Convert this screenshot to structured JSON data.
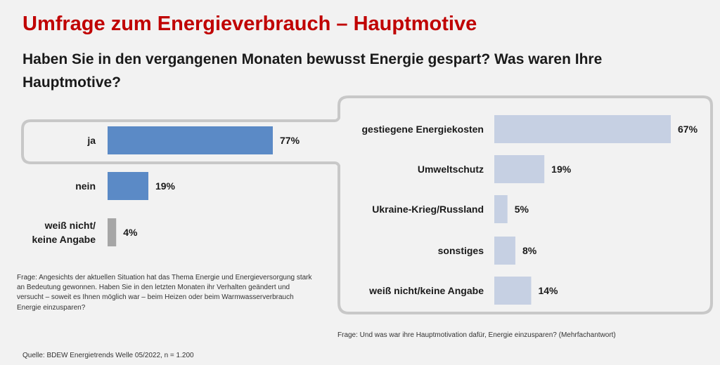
{
  "header": {
    "title": "Umfrage zum Energieverbrauch – Hauptmotive",
    "subtitle": "Haben Sie in den vergangenen Monaten bewusst Energie gespart? Was waren Ihre Hauptmotive?"
  },
  "notes": {
    "question_left": "Frage: Angesichts der aktuellen Situation hat das Thema Energie und Energieversorgung stark an Bedeutung gewonnen. Haben Sie in den letzten Monaten ihr Verhalten geändert und versucht – soweit es Ihnen möglich war – beim Heizen oder beim Warmwasserverbrauch Energie einzusparen?",
    "question_right": "Frage: Und was war ihre Hauptmotivation dafür, Energie einzusparen? (Mehrfachantwort)",
    "source": "Quelle: BDEW Energietrends Welle 05/2022, n = 1.200"
  },
  "colors": {
    "left_bar": "#5b8ac6",
    "left_bar_gray": "#a6a6a6",
    "right_bar": "#c6d0e3",
    "title": "#c00000"
  },
  "chart_data": [
    {
      "type": "bar",
      "orientation": "horizontal",
      "categories": [
        "ja",
        "nein",
        "weiß nicht/\nkeine Angabe"
      ],
      "values": [
        77,
        19,
        4
      ],
      "value_labels": [
        "77%",
        "19%",
        "4%"
      ],
      "unit": "%"
    },
    {
      "type": "bar",
      "orientation": "horizontal",
      "categories": [
        "gestiegene Energiekosten",
        "Umweltschutz",
        "Ukraine-Krieg/Russland",
        "sonstiges",
        "weiß nicht/keine Angabe"
      ],
      "values": [
        67,
        19,
        5,
        8,
        14
      ],
      "value_labels": [
        "67%",
        "19%",
        "5%",
        "8%",
        "14%"
      ],
      "unit": "%"
    }
  ]
}
